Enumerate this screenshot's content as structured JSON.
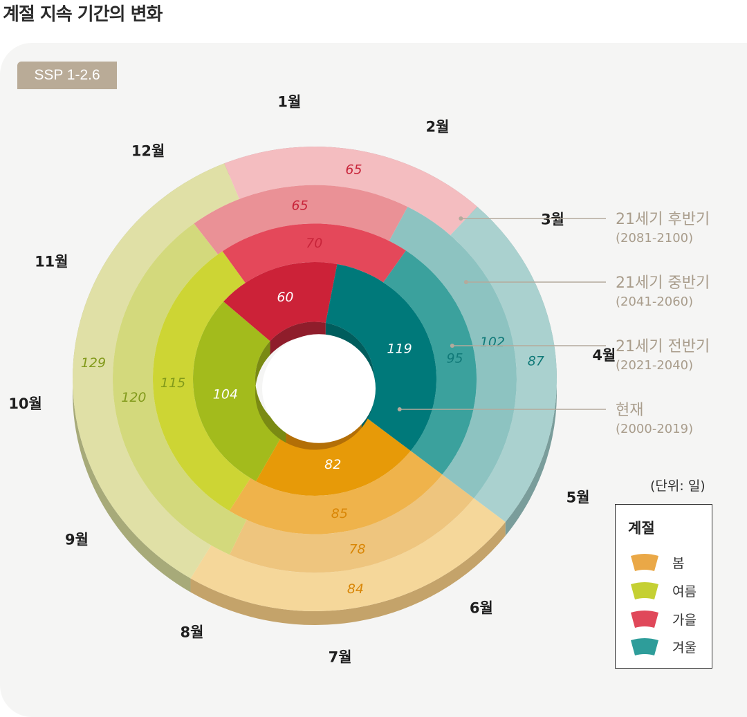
{
  "title": "계절 지속 기간의 변화",
  "scenario_badge": "SSP 1-2.6",
  "unit_label": "(단위: 일)",
  "legend": {
    "title": "계절",
    "items": [
      {
        "label": "봄",
        "color": "#eaa847"
      },
      {
        "label": "여름",
        "color": "#c5d033"
      },
      {
        "label": "가을",
        "color": "#e0485a"
      },
      {
        "label": "겨울",
        "color": "#2e9d9a"
      }
    ]
  },
  "months": [
    "1월",
    "2월",
    "3월",
    "4월",
    "5월",
    "6월",
    "7월",
    "8월",
    "9월",
    "10월",
    "11월",
    "12월"
  ],
  "chart_data": {
    "type": "pie",
    "subtype": "concentric-ring",
    "unit": "일",
    "series": [
      {
        "name": "현재",
        "period": "(2000-2019)",
        "seasons": {
          "봄": 82,
          "여름": 104,
          "가을": 60,
          "겨울": 119
        }
      },
      {
        "name": "21세기 전반기",
        "period": "(2021-2040)",
        "seasons": {
          "봄": 85,
          "여름": 115,
          "가을": 70,
          "겨울": 95
        }
      },
      {
        "name": "21세기 중반기",
        "period": "(2041-2060)",
        "seasons": {
          "봄": 78,
          "여름": 120,
          "가을": 65,
          "겨울": 102
        }
      },
      {
        "name": "21세기 후반기",
        "period": "(2081-2100)",
        "seasons": {
          "봄": 84,
          "여름": 129,
          "가을": 65,
          "겨울": 87
        }
      }
    ],
    "season_order": [
      "봄",
      "여름",
      "가을",
      "겨울"
    ]
  },
  "colors": {
    "봄": [
      "#e79a08",
      "#efb34b",
      "#eec57e",
      "#f5d79a"
    ],
    "여름": [
      "#a3bb1c",
      "#cdd534",
      "#d3d97c",
      "#e0e0a6"
    ],
    "가을": [
      "#cc2238",
      "#e4485a",
      "#ea9196",
      "#f4bdc0"
    ],
    "겨울": [
      "#00797a",
      "#3ba19d",
      "#8dc3c1",
      "#aad1cf"
    ],
    "sideShade": [
      "#b36f07",
      "#7a8a13",
      "#8f1d2b",
      "#005d5d"
    ],
    "outerSide": {
      "봄": "#c4a36a",
      "여름": "#a7aa79",
      "가을": "#a87f86",
      "겨울": "#7a9d9b"
    },
    "valueText": {
      "봄": "#d98606",
      "여름": "#829a1b",
      "가을": "#c8243a",
      "겨울": "#107978"
    }
  }
}
